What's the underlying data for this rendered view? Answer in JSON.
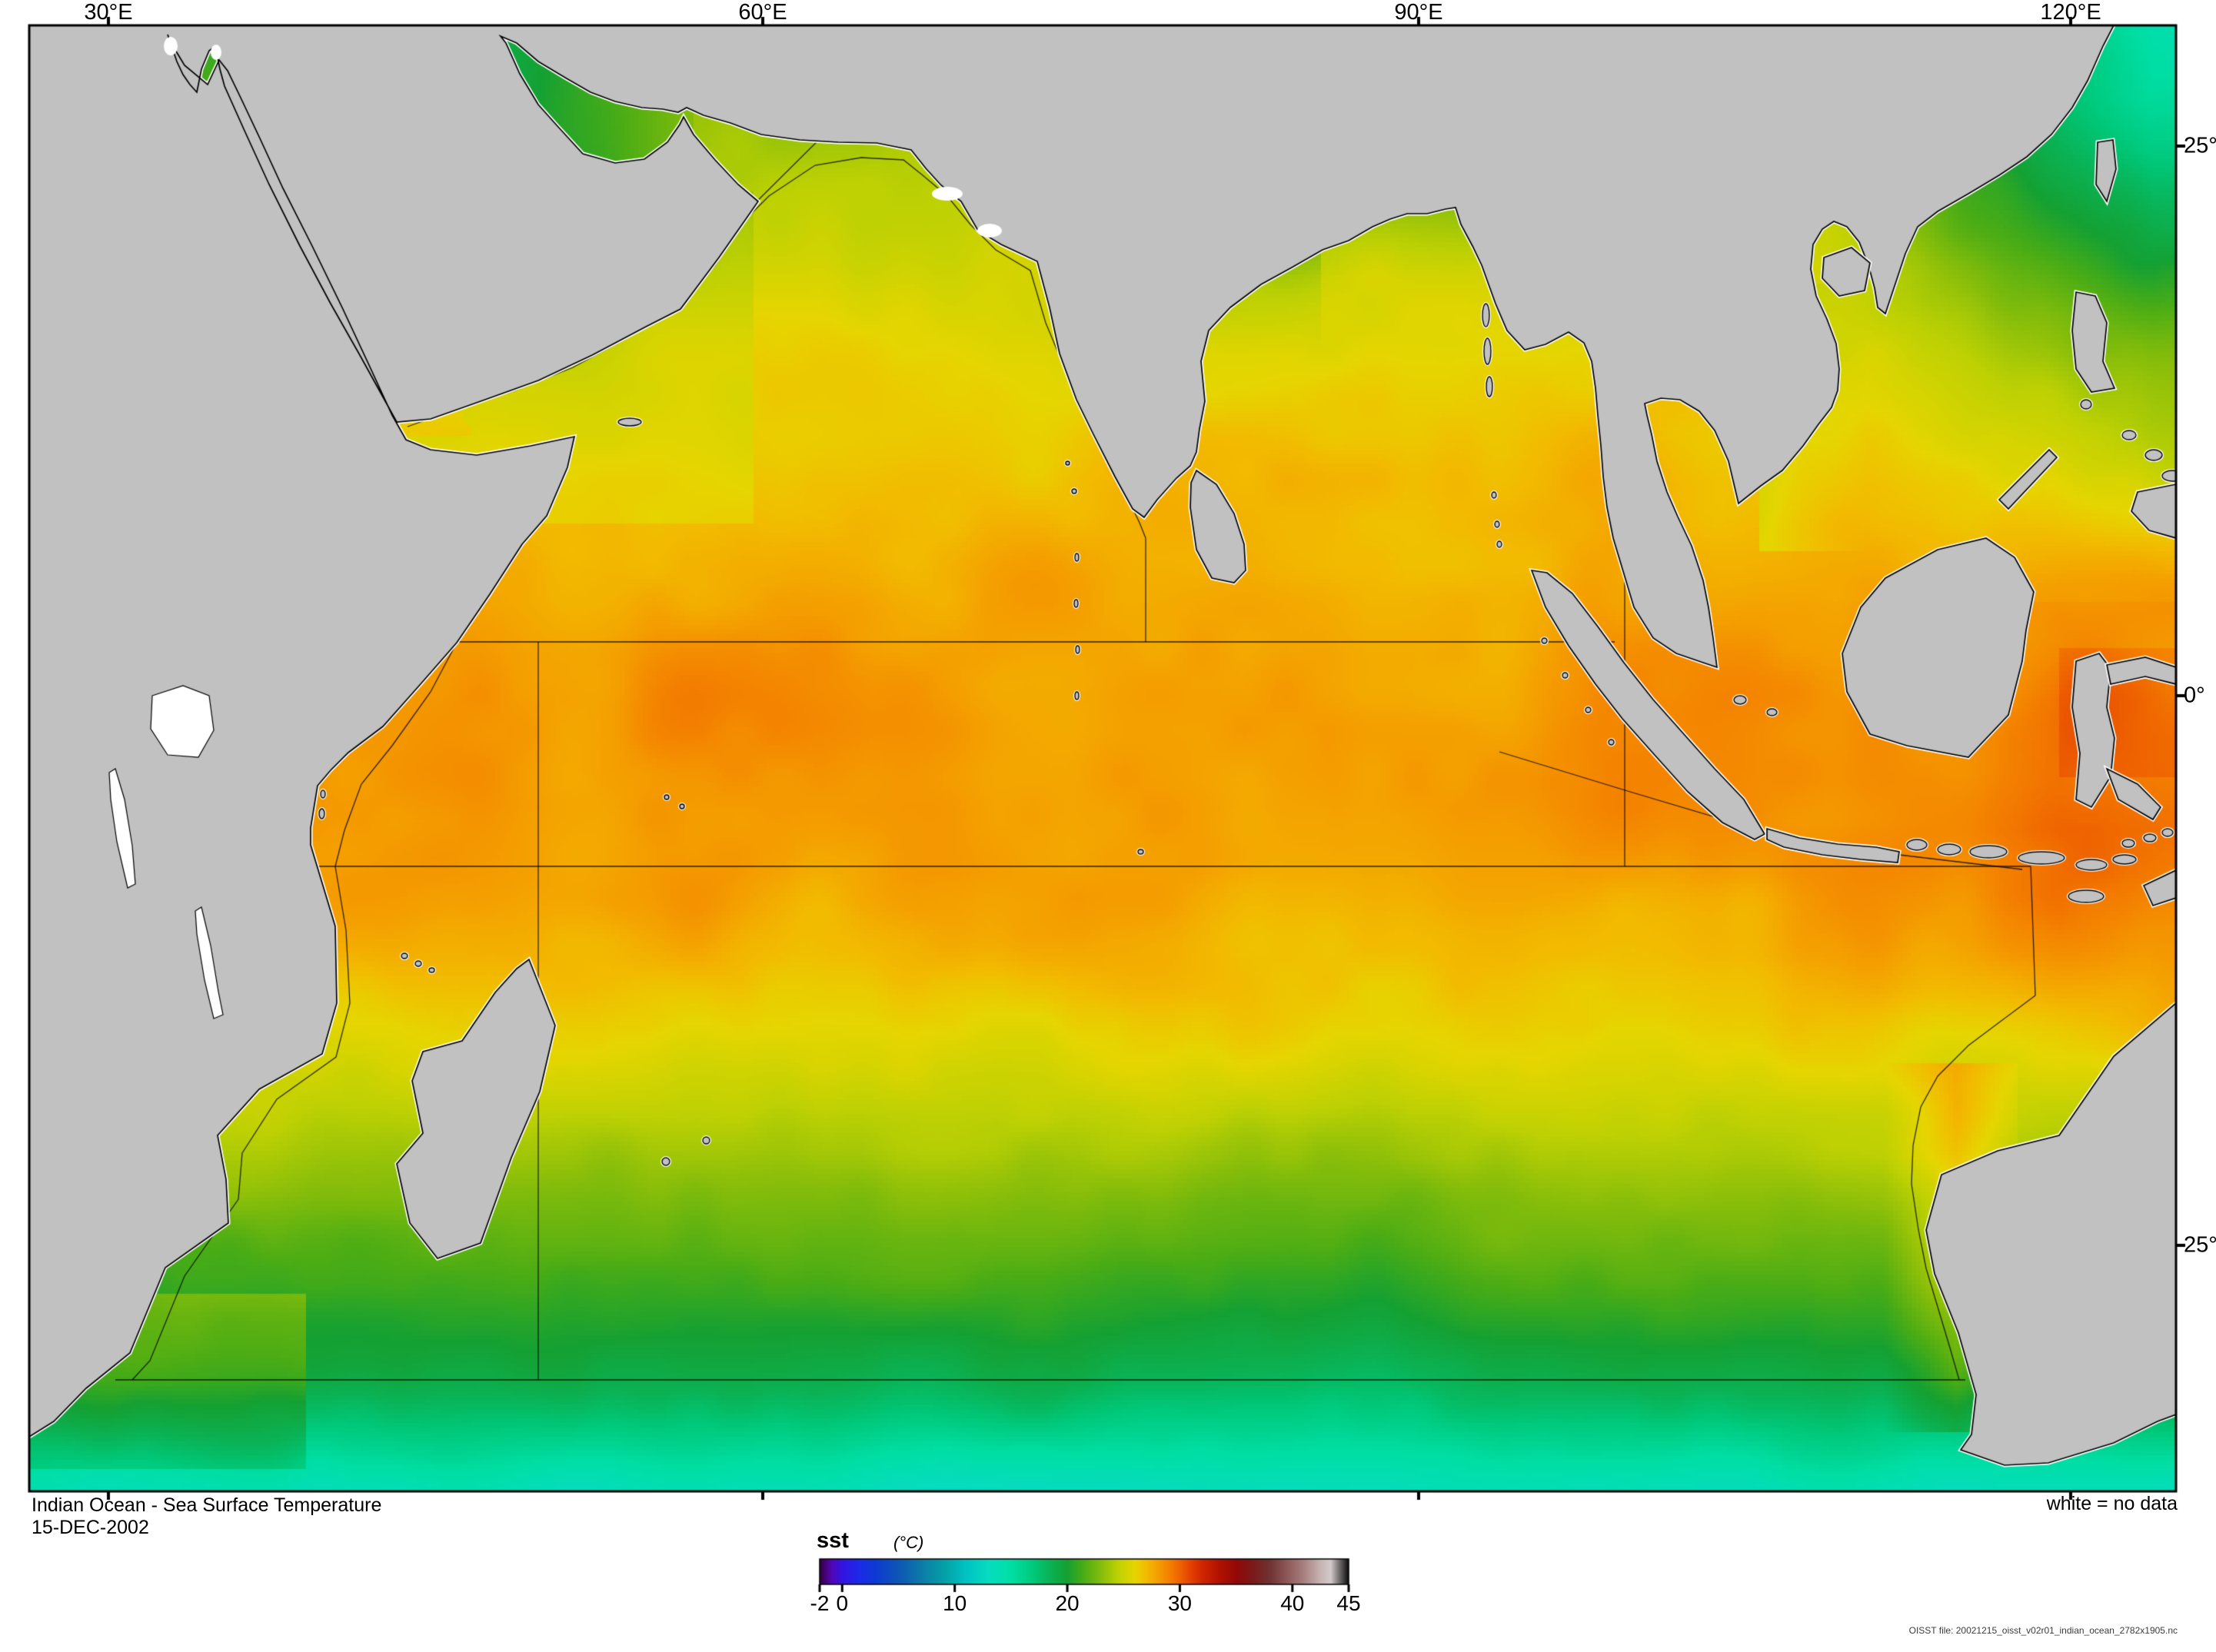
{
  "map": {
    "lon_labels": [
      "30°E",
      "60°E",
      "90°E",
      "120°E"
    ],
    "lon_tick_values": [
      30,
      60,
      90,
      120
    ],
    "lat_labels": [
      "25°",
      "0°",
      "25°"
    ],
    "lat_tick_values": [
      25,
      0,
      -25
    ],
    "no_data_note": "white = no data"
  },
  "title": "Indian Ocean - Sea Surface Temperature",
  "date": "15-DEC-2002",
  "file_note": "OISST file: 20021215_oisst_v02r01_indian_ocean_2782x1905.nc",
  "colorbar": {
    "label": "sst",
    "units": "(°C)",
    "min": -2,
    "max": 45,
    "tick_values": [
      -2,
      0,
      10,
      20,
      30,
      40,
      45
    ],
    "tick_labels": [
      "-2",
      "0",
      "10",
      "20",
      "30",
      "40",
      "45"
    ],
    "stops": [
      [
        -2,
        "#33003d"
      ],
      [
        -1,
        "#5205b0"
      ],
      [
        0,
        "#3414e2"
      ],
      [
        1.5,
        "#1b2ae8"
      ],
      [
        3,
        "#0d3bd2"
      ],
      [
        5,
        "#0d56b5"
      ],
      [
        7,
        "#0d7aa8"
      ],
      [
        9,
        "#049fa6"
      ],
      [
        11,
        "#00c3c3"
      ],
      [
        13,
        "#07dcc0"
      ],
      [
        15,
        "#00dfa5"
      ],
      [
        17,
        "#00c97b"
      ],
      [
        18.5,
        "#0bb254"
      ],
      [
        20,
        "#15a133"
      ],
      [
        21.5,
        "#4cad15"
      ],
      [
        23,
        "#85bd0b"
      ],
      [
        24.5,
        "#bed104"
      ],
      [
        26,
        "#e6d600"
      ],
      [
        27,
        "#f2bc00"
      ],
      [
        28,
        "#f5a000"
      ],
      [
        29,
        "#f48300"
      ],
      [
        30,
        "#ef6200"
      ],
      [
        31,
        "#e34200"
      ],
      [
        32,
        "#d02600"
      ],
      [
        33.5,
        "#b21200"
      ],
      [
        35,
        "#940808"
      ],
      [
        36.5,
        "#7a1a1a"
      ],
      [
        38,
        "#703333"
      ],
      [
        39.5,
        "#8d5858"
      ],
      [
        41,
        "#a88080"
      ],
      [
        42.5,
        "#c7b4b4"
      ],
      [
        43.4,
        "#d2cbcb"
      ],
      [
        44.2,
        "#6e6a6a"
      ],
      [
        45,
        "#0b0b0b"
      ]
    ]
  },
  "colors": {
    "land": "#c1c1c1",
    "coast": "#000000",
    "no_data": "#ffffff",
    "frame": "#000000",
    "background": "#ffffff"
  }
}
